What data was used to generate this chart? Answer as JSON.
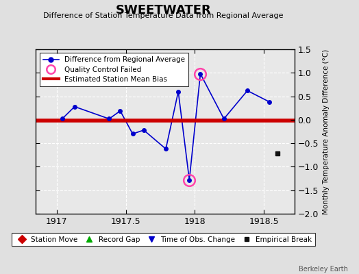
{
  "title": "SWEETWATER",
  "subtitle": "Difference of Station Temperature Data from Regional Average",
  "ylabel_right": "Monthly Temperature Anomaly Difference (°C)",
  "xlim": [
    1916.85,
    1918.72
  ],
  "ylim": [
    -2.0,
    1.5
  ],
  "yticks": [
    -2.0,
    -1.5,
    -1.0,
    -0.5,
    0.0,
    0.5,
    1.0,
    1.5
  ],
  "xticks": [
    1917.0,
    1917.5,
    1918.0,
    1918.5
  ],
  "xticklabels": [
    "1917",
    "1917.5",
    "1918",
    "1918.5"
  ],
  "bias_line_y": -0.02,
  "bias_color": "#cc0000",
  "line_color": "#0000cc",
  "line_x": [
    1917.04,
    1917.13,
    1917.38,
    1917.46,
    1917.55,
    1917.63,
    1917.79,
    1917.88,
    1917.96,
    1918.04,
    1918.21,
    1918.38,
    1918.54
  ],
  "line_y": [
    0.02,
    0.28,
    0.02,
    0.19,
    -0.3,
    -0.22,
    -0.62,
    0.6,
    -1.28,
    0.98,
    0.02,
    0.62,
    0.38
  ],
  "qc_failed_indices": [
    8,
    9
  ],
  "isolated_point_x": 1918.6,
  "isolated_point_y": -0.72,
  "fig_bg": "#e0e0e0",
  "plot_bg": "#e8e8e8",
  "grid_color": "#ffffff",
  "watermark": "Berkeley Earth"
}
